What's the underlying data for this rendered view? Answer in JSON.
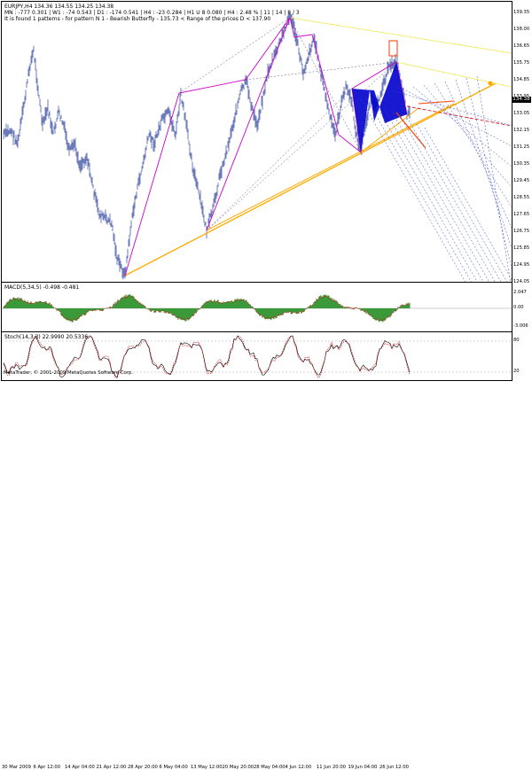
{
  "window": {
    "symbol_header": "EURJPY,H4 134.36 134.55 134.25 134.38",
    "info_line_1": "MN : -777 0.301 | W1 : -74 0.543 | D1 : -174 0.541 | H4 : -23 0.284 | H1 U 8 0.080 | H4 : 2.48 % | 11 | 14 | 8 / 3",
    "info_line_2": "It is found 1 patterns  -  for pattern N 1 - Bearish Butterfly - 135.73 < Range of the prices D < 137.90",
    "current_price": "134.38",
    "copyright": "MetaTrader, © 2001-2009 MetaQuotes Software Corp."
  },
  "main_axis": {
    "ticks": [
      "139.35",
      "138.00",
      "136.65",
      "135.75",
      "134.85",
      "133.95",
      "133.05",
      "132.15",
      "131.25",
      "130.35",
      "129.45",
      "128.55",
      "127.65",
      "126.75",
      "125.85",
      "124.95",
      "124.05"
    ],
    "range": [
      124.05,
      139.35
    ]
  },
  "macd": {
    "label": "MACD(5,34,5) -0.498 -0.481",
    "ticks": [
      "2.047",
      "0.00",
      "-3.006"
    ]
  },
  "stoch": {
    "label": "Stoch(14,3,3) 22.9990 20.5336",
    "ticks": [
      "80",
      "20"
    ]
  },
  "time_axis": {
    "labels": [
      "30 Mar 2009",
      "6 Apr 12:00",
      "14 Apr 04:00",
      "21 Apr 12:00",
      "28 Apr 20:00",
      "6 May 04:00",
      "13 May 12:00",
      "20 May 20:00",
      "28 May 04:00",
      "4 Jun 12:00",
      "11 Jun 20:00",
      "19 Jun 04:00",
      "26 Jun 12:00"
    ]
  },
  "colors": {
    "bars": "#6b7ab8",
    "harmonic": "#cc00cc",
    "trend_gold": "#ffaa00",
    "channel_yellow": "#ffff66",
    "pattern_fill": "#0000cc",
    "fib_blue": "#0000cc",
    "macd_green": "#3a9a3a",
    "signal_red": "#cc0000"
  }
}
